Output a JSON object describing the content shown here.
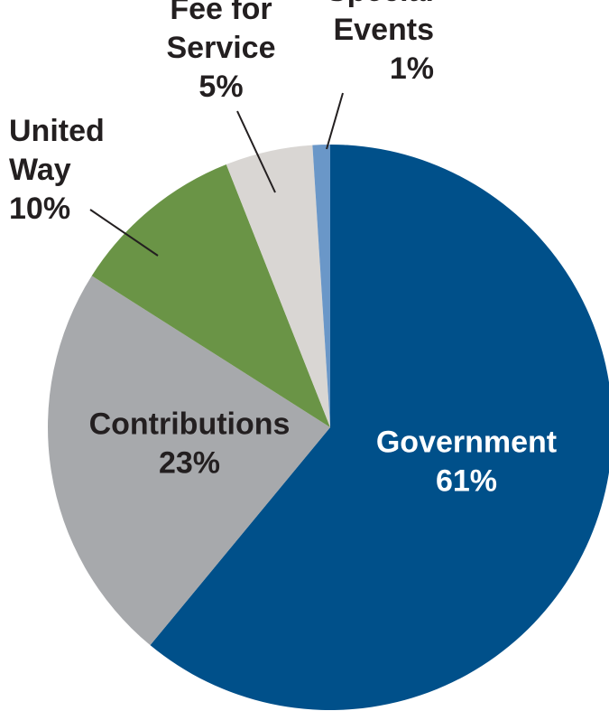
{
  "chart_data": {
    "type": "pie",
    "title": "",
    "slices": [
      {
        "label_lines": [
          "Government"
        ],
        "value_label": "61%",
        "value": 61,
        "color": "#00508A",
        "text_color": "#FFFFFF"
      },
      {
        "label_lines": [
          "Contributions"
        ],
        "value_label": "23%",
        "value": 23,
        "color": "#A7A9AC",
        "text_color": "#231F20"
      },
      {
        "label_lines": [
          "United",
          "Way"
        ],
        "value_label": "10%",
        "value": 10,
        "color": "#6A9446",
        "text_color": "#231F20"
      },
      {
        "label_lines": [
          "Fee for",
          "Service"
        ],
        "value_label": "5%",
        "value": 5,
        "color": "#D9D6D3",
        "text_color": "#231F20"
      },
      {
        "label_lines": [
          "Special",
          "Events"
        ],
        "value_label": "1%",
        "value": 1,
        "color": "#6A97C8",
        "text_color": "#231F20"
      }
    ],
    "start_angle_deg": 0,
    "direction": "clockwise",
    "legend": "none"
  }
}
